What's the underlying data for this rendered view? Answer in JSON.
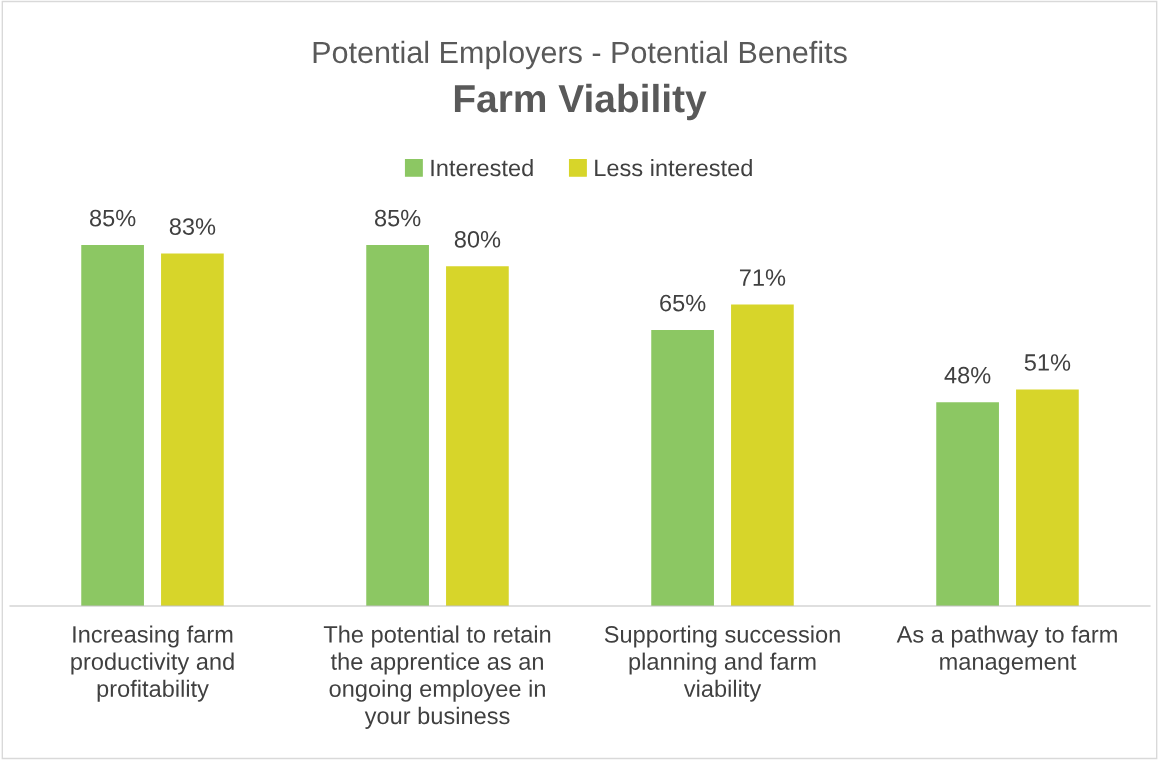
{
  "chart_data": {
    "type": "bar",
    "title": "Potential Employers - Potential Benefits",
    "subtitle": "Farm Viability",
    "categories": [
      "Increasing farm\nproductivity and\nprofitability",
      "The potential to retain\nthe apprentice as an\nongoing employee in\nyour business",
      "Supporting succession\nplanning and farm\nviability",
      "As a pathway to farm\nmanagement"
    ],
    "series": [
      {
        "name": "Interested",
        "color": "#8cc763",
        "values": [
          85,
          85,
          65,
          48
        ],
        "value_labels": [
          "85%",
          "85%",
          "65%",
          "48%"
        ]
      },
      {
        "name": "Less interested",
        "color": "#d7d52a",
        "values": [
          83,
          80,
          71,
          51
        ],
        "value_labels": [
          "83%",
          "80%",
          "71%",
          "51%"
        ]
      }
    ],
    "legend": "top",
    "grid": false
  }
}
